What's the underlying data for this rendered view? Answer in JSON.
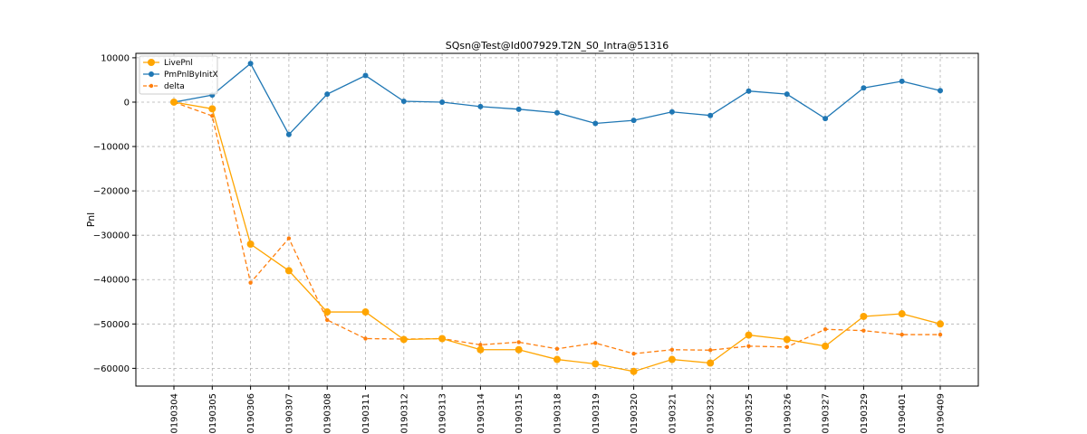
{
  "chart_data": {
    "type": "line",
    "title": "SQsn@Test@Id007929.T2N_S0_Intra@51316",
    "xlabel": "",
    "ylabel": "Pnl",
    "ylim": [
      -64000,
      11000
    ],
    "yticks": [
      10000,
      0,
      -10000,
      -20000,
      -30000,
      -40000,
      -50000,
      -60000
    ],
    "ytick_labels": [
      "10000",
      "0",
      "−10000",
      "−20000",
      "−30000",
      "−40000",
      "−50000",
      "−60000"
    ],
    "grid": true,
    "legend_position": "top-left",
    "categories": [
      "20190304",
      "20190305",
      "20190306",
      "20190307",
      "20190308",
      "20190311",
      "20190312",
      "20190313",
      "20190314",
      "20190315",
      "20190318",
      "20190319",
      "20190320",
      "20190321",
      "20190322",
      "20190325",
      "20190326",
      "20190327",
      "20190329",
      "20190401",
      "20190409"
    ],
    "series": [
      {
        "name": "LivePnl",
        "color": "#ffa500",
        "style": "solid",
        "marker": "large-circle",
        "values": [
          0,
          -1500,
          -32000,
          -38000,
          -47300,
          -47300,
          -53500,
          -53300,
          -55800,
          -55800,
          -58000,
          -59000,
          -60700,
          -58000,
          -58800,
          -52500,
          -53500,
          -55000,
          -48300,
          -47700,
          -50000
        ]
      },
      {
        "name": "PmPnlByInitX",
        "color": "#1f77b4",
        "style": "solid",
        "marker": "circle",
        "values": [
          0,
          1600,
          8700,
          -7300,
          1800,
          6000,
          200,
          0,
          -1000,
          -1600,
          -2400,
          -4800,
          -4100,
          -2200,
          -3000,
          2500,
          1800,
          -3700,
          3200,
          4700,
          2600
        ]
      },
      {
        "name": "delta",
        "color": "#ff7f0e",
        "style": "dashed",
        "marker": "small-circle",
        "values": [
          0,
          -3100,
          -40700,
          -30700,
          -49100,
          -53300,
          -53400,
          -53300,
          -54700,
          -54100,
          -55600,
          -54300,
          -56700,
          -55800,
          -55900,
          -55000,
          -55200,
          -51200,
          -51500,
          -52400,
          -52400
        ]
      }
    ]
  }
}
